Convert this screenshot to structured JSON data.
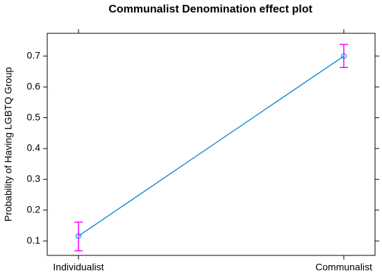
{
  "chart_data": {
    "type": "line",
    "title": "Communalist Denomination effect plot",
    "y_label": "Probability of Having LGBTQ Group",
    "categories": [
      "Individualist",
      "Communalist"
    ],
    "series": [
      {
        "color": "#1a8fe3",
        "values": [
          0.116,
          0.7
        ],
        "lower": [
          0.068,
          0.663
        ],
        "upper": [
          0.161,
          0.738
        ],
        "error_color": "#ff00ff"
      }
    ],
    "ylim": [
      0.053,
      0.774
    ],
    "yticks": [
      0.1,
      0.2,
      0.3,
      0.4,
      0.5,
      0.6,
      0.7
    ]
  }
}
